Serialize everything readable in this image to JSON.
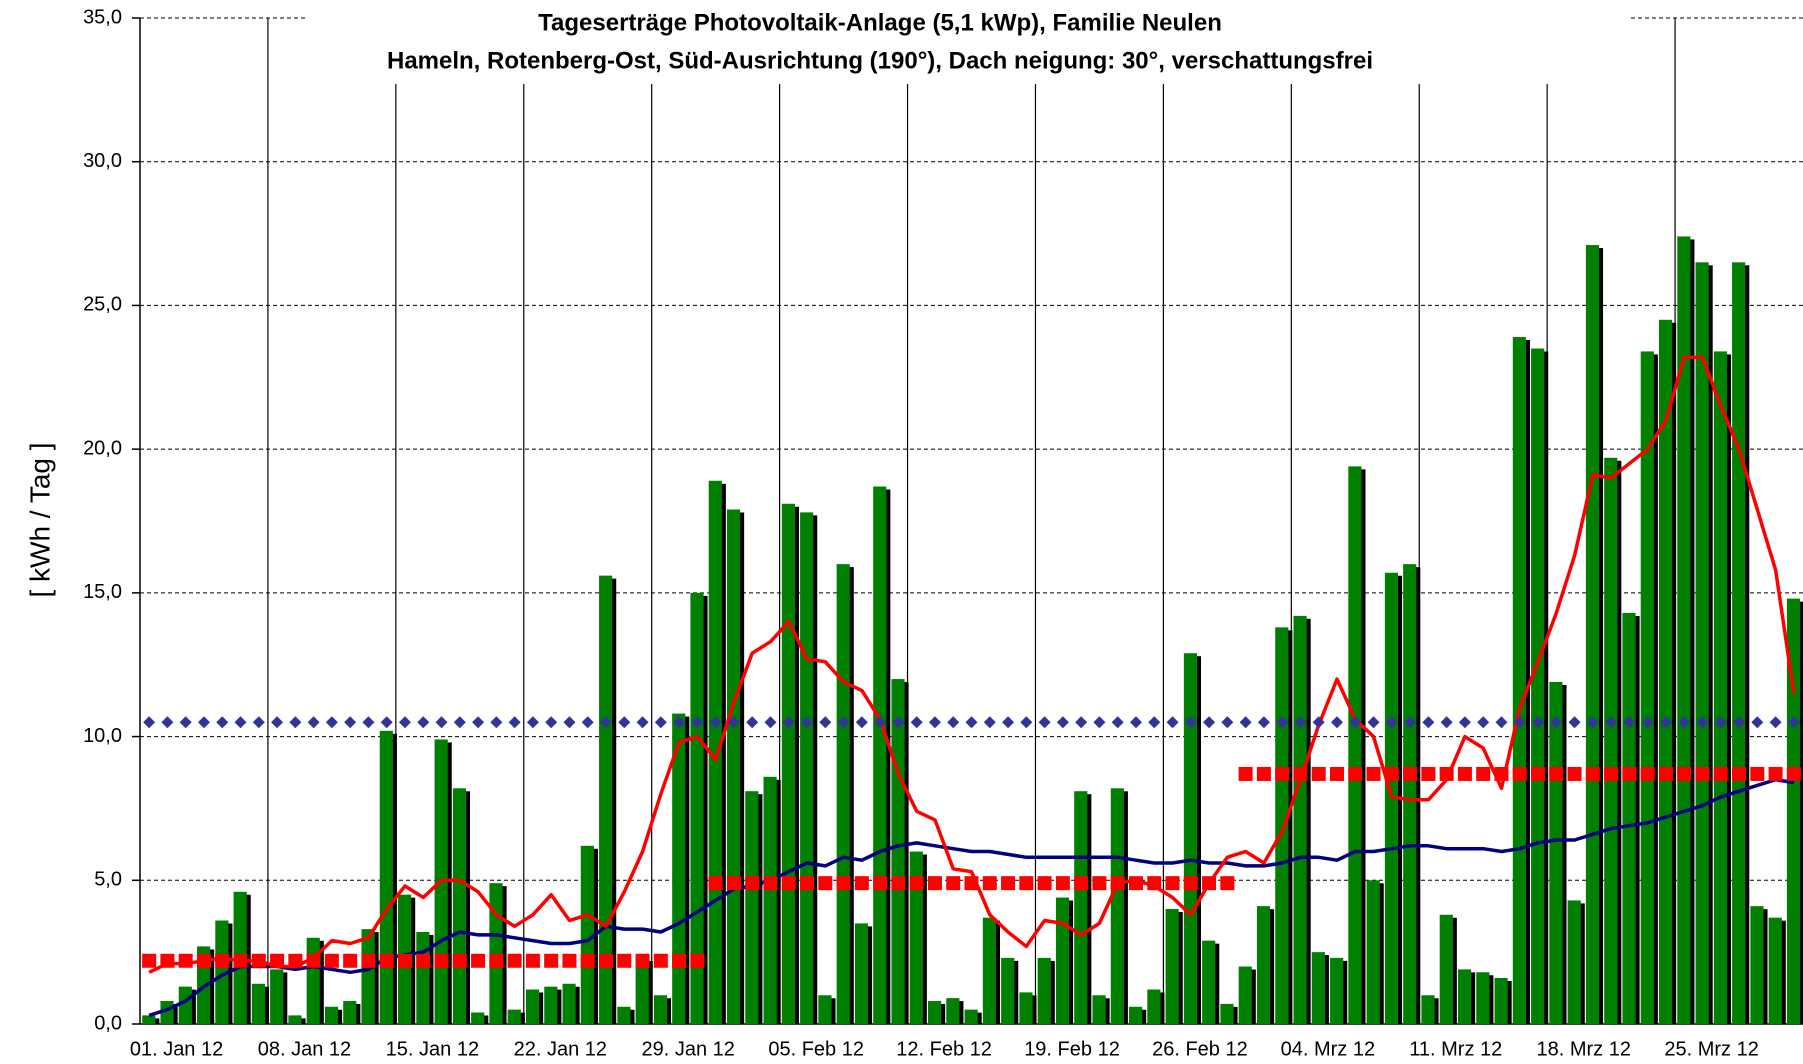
{
  "chart_data": {
    "type": "bar",
    "title": [
      "Tageserträge Photovoltaik-Anlage (5,1 kWp),  Familie Neulen",
      "Hameln, Rotenberg-Ost, Süd-Ausrichtung (190°), Dach neigung: 30°, verschattungsfrei"
    ],
    "y_label": "[ kWh / Tag ]",
    "categories": [
      "01. Jan 12",
      null,
      null,
      null,
      null,
      null,
      null,
      "08. Jan 12",
      null,
      null,
      null,
      null,
      null,
      null,
      "15. Jan 12",
      null,
      null,
      null,
      null,
      null,
      null,
      "22. Jan 12",
      null,
      null,
      null,
      null,
      null,
      null,
      "29. Jan 12",
      null,
      null,
      null,
      null,
      null,
      null,
      "05. Feb 12",
      null,
      null,
      null,
      null,
      null,
      null,
      "12. Feb 12",
      null,
      null,
      null,
      null,
      null,
      null,
      "19. Feb 12",
      null,
      null,
      null,
      null,
      null,
      null,
      "26. Feb 12",
      null,
      null,
      null,
      null,
      null,
      null,
      "04. Mrz 12",
      null,
      null,
      null,
      null,
      null,
      null,
      "11. Mrz 12",
      null,
      null,
      null,
      null,
      null,
      null,
      "18. Mrz 12",
      null,
      null,
      null,
      null,
      null,
      null,
      "25. Mrz 12",
      null,
      null,
      null,
      null,
      null,
      null
    ],
    "series": [
      {
        "type": "bar",
        "color": "#008000",
        "values": [
          0.3,
          0.8,
          1.3,
          2.7,
          3.6,
          4.6,
          1.4,
          1.9,
          0.3,
          3.0,
          0.6,
          0.8,
          3.3,
          10.2,
          4.5,
          3.2,
          9.9,
          8.2,
          0.4,
          4.9,
          0.5,
          1.2,
          1.3,
          1.4,
          6.2,
          15.6,
          0.6,
          2.3,
          1.0,
          10.8,
          15.0,
          18.9,
          17.9,
          8.1,
          8.6,
          18.1,
          17.8,
          1.0,
          16.0,
          3.5,
          18.7,
          12.0,
          6.0,
          0.8,
          0.9,
          0.5,
          3.7,
          2.3,
          1.1,
          2.3,
          4.4,
          8.1,
          1.0,
          8.2,
          0.6,
          1.2,
          4.0,
          12.9,
          2.9,
          0.7,
          2.0,
          4.1,
          13.8,
          14.2,
          2.5,
          2.3,
          19.4,
          5.0,
          15.7,
          16.0,
          1.0,
          3.8,
          1.9,
          1.8,
          1.6,
          23.9,
          23.5,
          11.9,
          4.3,
          27.1,
          19.7,
          14.3,
          23.4,
          24.5,
          27.4,
          26.5,
          23.4,
          26.5,
          4.1,
          3.7,
          14.8
        ]
      },
      {
        "type": "line",
        "color": "#000080",
        "values": [
          0.3,
          0.5,
          0.8,
          1.3,
          1.7,
          2.0,
          2.0,
          2.0,
          1.9,
          2.0,
          1.9,
          1.8,
          1.9,
          2.3,
          2.4,
          2.5,
          2.9,
          3.2,
          3.1,
          3.1,
          3.0,
          2.9,
          2.8,
          2.8,
          2.9,
          3.4,
          3.3,
          3.3,
          3.2,
          3.5,
          3.9,
          4.3,
          4.7,
          4.8,
          5.0,
          5.3,
          5.6,
          5.5,
          5.8,
          5.7,
          6.0,
          6.2,
          6.3,
          6.2,
          6.1,
          6.0,
          6.0,
          5.9,
          5.8,
          5.8,
          5.8,
          5.8,
          5.8,
          5.8,
          5.7,
          5.6,
          5.6,
          5.7,
          5.6,
          5.6,
          5.5,
          5.5,
          5.6,
          5.8,
          5.8,
          5.7,
          6.0,
          6.0,
          6.1,
          6.2,
          6.2,
          6.1,
          6.1,
          6.1,
          6.0,
          6.1,
          6.3,
          6.4,
          6.4,
          6.6,
          6.8,
          6.9,
          7.0,
          7.2,
          7.4,
          7.6,
          7.9,
          8.1,
          8.3,
          8.5,
          8.4
        ]
      },
      {
        "type": "line",
        "color": "#ff0000",
        "values": [
          1.8,
          2.1,
          2.1,
          2.2,
          2.3,
          2.2,
          2.2,
          2.0,
          2.0,
          2.3,
          2.9,
          2.8,
          3.0,
          4.0,
          4.8,
          4.4,
          5.0,
          5.0,
          4.6,
          3.8,
          3.4,
          3.8,
          4.5,
          3.6,
          3.8,
          3.4,
          4.6,
          6.0,
          8.0,
          9.8,
          10.0,
          9.2,
          11.2,
          12.9,
          13.3,
          14.0,
          12.7,
          12.6,
          11.9,
          11.6,
          10.6,
          8.7,
          7.4,
          7.1,
          5.4,
          5.3,
          3.8,
          3.2,
          2.7,
          3.6,
          3.5,
          3.1,
          3.5,
          4.9,
          5.0,
          4.8,
          4.4,
          3.8,
          4.9,
          5.8,
          6.0,
          5.6,
          6.7,
          8.5,
          10.4,
          12.0,
          10.6,
          10.0,
          7.9,
          7.8,
          7.8,
          8.5,
          10.0,
          9.6,
          8.2,
          11.0,
          12.6,
          14.3,
          16.3,
          19.1,
          19.0,
          19.5,
          20.0,
          21.0,
          23.2,
          23.2,
          21.5,
          20.0,
          17.9,
          15.8,
          11.5
        ]
      },
      {
        "type": "markers",
        "marker": "square",
        "color": "#ff0000",
        "values": [
          2.2,
          2.2,
          2.2,
          2.2,
          2.2,
          2.2,
          2.2,
          2.2,
          2.2,
          2.2,
          2.2,
          2.2,
          2.2,
          2.2,
          2.2,
          2.2,
          2.2,
          2.2,
          2.2,
          2.2,
          2.2,
          2.2,
          2.2,
          2.2,
          2.2,
          2.2,
          2.2,
          2.2,
          2.2,
          2.2,
          2.2,
          4.9,
          4.9,
          4.9,
          4.9,
          4.9,
          4.9,
          4.9,
          4.9,
          4.9,
          4.9,
          4.9,
          4.9,
          4.9,
          4.9,
          4.9,
          4.9,
          4.9,
          4.9,
          4.9,
          4.9,
          4.9,
          4.9,
          4.9,
          4.9,
          4.9,
          4.9,
          4.9,
          4.9,
          4.9,
          8.7,
          8.7,
          8.7,
          8.7,
          8.7,
          8.7,
          8.7,
          8.7,
          8.7,
          8.7,
          8.7,
          8.7,
          8.7,
          8.7,
          8.7,
          8.7,
          8.7,
          8.7,
          8.7,
          8.7,
          8.7,
          8.7,
          8.7,
          8.7,
          8.7,
          8.7,
          8.7,
          8.7,
          8.7,
          8.7,
          8.7
        ]
      },
      {
        "type": "markers",
        "marker": "diamond",
        "color": "#333399",
        "values": [
          10.5,
          10.5,
          10.5,
          10.5,
          10.5,
          10.5,
          10.5,
          10.5,
          10.5,
          10.5,
          10.5,
          10.5,
          10.5,
          10.5,
          10.5,
          10.5,
          10.5,
          10.5,
          10.5,
          10.5,
          10.5,
          10.5,
          10.5,
          10.5,
          10.5,
          10.5,
          10.5,
          10.5,
          10.5,
          10.5,
          10.5,
          10.5,
          10.5,
          10.5,
          10.5,
          10.5,
          10.5,
          10.5,
          10.5,
          10.5,
          10.5,
          10.5,
          10.5,
          10.5,
          10.5,
          10.5,
          10.5,
          10.5,
          10.5,
          10.5,
          10.5,
          10.5,
          10.5,
          10.5,
          10.5,
          10.5,
          10.5,
          10.5,
          10.5,
          10.5,
          10.5,
          10.5,
          10.5,
          10.5,
          10.5,
          10.5,
          10.5,
          10.5,
          10.5,
          10.5,
          10.5,
          10.5,
          10.5,
          10.5,
          10.5,
          10.5,
          10.5,
          10.5,
          10.5,
          10.5,
          10.5,
          10.5,
          10.5,
          10.5,
          10.5,
          10.5,
          10.5,
          10.5,
          10.5,
          10.5,
          10.5
        ]
      }
    ],
    "ylim": [
      0,
      35
    ],
    "yticks": [
      {
        "value": 0,
        "label": "0,0"
      },
      {
        "value": 5,
        "label": "5,0"
      },
      {
        "value": 10,
        "label": "10,0"
      },
      {
        "value": 15,
        "label": "15,0"
      },
      {
        "value": 20,
        "label": "20,0"
      },
      {
        "value": 25,
        "label": "25,0"
      },
      {
        "value": 30,
        "label": "30,0"
      },
      {
        "value": 35,
        "label": "35,0"
      }
    ],
    "grid": true,
    "x_grid": true
  }
}
